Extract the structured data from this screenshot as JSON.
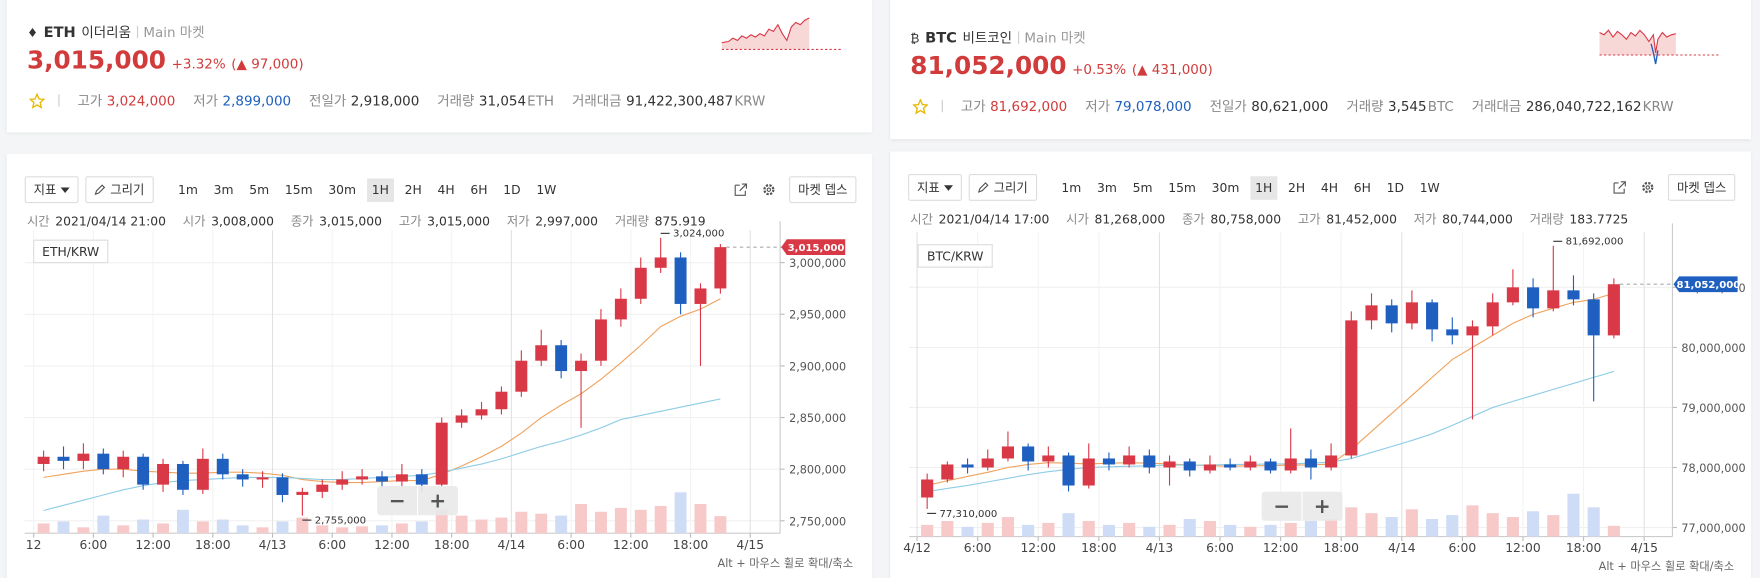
{
  "tickers": [
    {
      "icon": "♦",
      "symbol": "ETH",
      "name": "이더리움",
      "market": "Main 마켓",
      "price": "3,015,000",
      "change_pct": "+3.32%",
      "change_abs": "(▲ 97,000)",
      "color": "#d13b3b",
      "stats": [
        {
          "label": "고가",
          "value": "3,024,000",
          "color": "#d13b3b"
        },
        {
          "label": "저가",
          "value": "2,899,000",
          "color": "#1f5fbf"
        },
        {
          "label": "전일가",
          "value": "2,918,000"
        },
        {
          "label": "거래량",
          "value": "31,054",
          "unit": "ETH"
        },
        {
          "label": "거래대금",
          "value": "91,422,300,487",
          "unit": "KRW"
        }
      ]
    },
    {
      "icon": "₿",
      "symbol": "BTC",
      "name": "비트코인",
      "market": "Main 마켓",
      "price": "81,052,000",
      "change_pct": "+0.53%",
      "change_abs": "(▲ 431,000)",
      "color": "#d13b3b",
      "stats": [
        {
          "label": "고가",
          "value": "81,692,000",
          "color": "#d13b3b"
        },
        {
          "label": "저가",
          "value": "79,078,000",
          "color": "#1f5fbf"
        },
        {
          "label": "전일가",
          "value": "80,621,000"
        },
        {
          "label": "거래량",
          "value": "3,545",
          "unit": "BTC"
        },
        {
          "label": "거래대금",
          "value": "286,040,722,162",
          "unit": "KRW"
        }
      ]
    }
  ],
  "toolbar": {
    "indicator": "지표",
    "draw": "그리기",
    "intervals": [
      "1m",
      "3m",
      "5m",
      "15m",
      "30m",
      "1H",
      "2H",
      "4H",
      "6H",
      "1D",
      "1W"
    ],
    "selected_interval": 5,
    "depth": "마켓 뎁스",
    "zoom_out": "−",
    "zoom_in": "+",
    "hint": "Alt + 마우스 휠로 확대/축소"
  },
  "chart_data": [
    {
      "type": "candlestick",
      "pair": "ETH/KRW",
      "info": [
        {
          "label": "시간",
          "value": "2021/04/14 21:00"
        },
        {
          "label": "시가",
          "value": "3,008,000"
        },
        {
          "label": "종가",
          "value": "3,015,000"
        },
        {
          "label": "고가",
          "value": "3,015,000"
        },
        {
          "label": "저가",
          "value": "2,997,000"
        },
        {
          "label": "거래량",
          "value": "875.919"
        }
      ],
      "x": [
        1,
        3,
        5,
        7,
        9,
        11,
        13,
        15,
        17,
        19,
        21,
        23,
        25,
        27,
        29,
        31,
        33,
        35,
        37,
        39,
        41,
        43,
        45,
        47,
        49,
        51,
        53,
        55,
        57,
        59,
        61,
        63,
        65,
        67,
        69
      ],
      "open": [
        2805000,
        2812000,
        2808000,
        2815000,
        2800000,
        2812000,
        2785000,
        2805000,
        2780000,
        2810000,
        2795000,
        2790000,
        2792000,
        2775000,
        2778000,
        2785000,
        2790000,
        2793000,
        2788000,
        2795000,
        2785000,
        2845000,
        2852000,
        2858000,
        2875000,
        2905000,
        2920000,
        2895000,
        2905000,
        2945000,
        2965000,
        2995000,
        3005000,
        2960000,
        2975000
      ],
      "high": [
        2818000,
        2822000,
        2825000,
        2820000,
        2818000,
        2815000,
        2810000,
        2808000,
        2820000,
        2815000,
        2800000,
        2798000,
        2796000,
        2782000,
        2790000,
        2798000,
        2800000,
        2798000,
        2805000,
        2800000,
        2850000,
        2858000,
        2865000,
        2880000,
        2915000,
        2935000,
        2925000,
        2912000,
        2955000,
        2975000,
        3005000,
        3024000,
        3010000,
        2980000,
        3018000
      ],
      "low": [
        2798000,
        2800000,
        2800000,
        2795000,
        2792000,
        2780000,
        2778000,
        2775000,
        2776000,
        2790000,
        2783000,
        2782000,
        2768000,
        2755000,
        2772000,
        2780000,
        2785000,
        2782000,
        2783000,
        2778000,
        2783000,
        2840000,
        2848000,
        2853000,
        2870000,
        2900000,
        2888000,
        2840000,
        2900000,
        2938000,
        2960000,
        2990000,
        2950000,
        2900000,
        2970000
      ],
      "close": [
        2812000,
        2808000,
        2815000,
        2800000,
        2812000,
        2785000,
        2805000,
        2780000,
        2810000,
        2795000,
        2790000,
        2792000,
        2775000,
        2778000,
        2785000,
        2790000,
        2793000,
        2788000,
        2795000,
        2785000,
        2845000,
        2852000,
        2858000,
        2875000,
        2905000,
        2920000,
        2895000,
        2905000,
        2945000,
        2965000,
        2995000,
        3005000,
        2960000,
        2975000,
        3015000
      ],
      "volume": [
        500,
        600,
        300,
        900,
        400,
        700,
        500,
        1200,
        600,
        700,
        400,
        300,
        600,
        800,
        400,
        300,
        350,
        400,
        500,
        600,
        1200,
        900,
        700,
        800,
        1100,
        1000,
        900,
        1500,
        1100,
        1300,
        1200,
        1400,
        2100,
        1500,
        875
      ],
      "volume_lim": [
        0,
        3000
      ],
      "ma": [
        {
          "color": "#f0a25c",
          "values": [
            2792000,
            2795000,
            2798000,
            2800000,
            2800000,
            2798000,
            2797000,
            2796000,
            2796000,
            2797000,
            2797000,
            2796000,
            2794000,
            2790000,
            2788000,
            2787000,
            2787000,
            2788000,
            2789000,
            2789000,
            2795000,
            2803000,
            2812000,
            2822000,
            2835000,
            2850000,
            2862000,
            2873000,
            2887000,
            2903000,
            2920000,
            2938000,
            2948000,
            2955000,
            2965000
          ]
        },
        {
          "color": "#8ecde6",
          "values": [
            2760000,
            2765000,
            2770000,
            2775000,
            2780000,
            2784000,
            2787000,
            2789000,
            2790000,
            2791000,
            2792000,
            2792000,
            2792000,
            2791000,
            2790000,
            2790000,
            2791000,
            2792000,
            2793000,
            2794000,
            2797000,
            2801000,
            2805000,
            2810000,
            2816000,
            2822000,
            2827000,
            2833000,
            2840000,
            2848000,
            2852000,
            2856000,
            2860000,
            2864000,
            2868000
          ]
        }
      ],
      "up_color": "#d93846",
      "down_color": "#1f5fbf",
      "up_volume_color": "#f7c9c9",
      "down_volume_color": "#cfdcf5",
      "xlim": [
        -0.9,
        75
      ],
      "xticks": [
        {
          "value": 0,
          "label": "12"
        },
        {
          "value": 6,
          "label": "6:00"
        },
        {
          "value": 12,
          "label": "12:00"
        },
        {
          "value": 18,
          "label": "18:00"
        },
        {
          "value": 24,
          "label": "4/13"
        },
        {
          "value": 30,
          "label": "6:00"
        },
        {
          "value": 36,
          "label": "12:00"
        },
        {
          "value": 42,
          "label": "18:00"
        },
        {
          "value": 48,
          "label": "4/14"
        },
        {
          "value": 54,
          "label": "6:00"
        },
        {
          "value": 60,
          "label": "12:00"
        },
        {
          "value": 66,
          "label": "18:00"
        },
        {
          "value": 72,
          "label": "4/15"
        }
      ],
      "ylim": [
        2738000,
        3031500
      ],
      "yticks": [
        {
          "value": 2750000,
          "label": "2,750,000"
        },
        {
          "value": 2800000,
          "label": "2,800,000"
        },
        {
          "value": 2850000,
          "label": "2,850,000"
        },
        {
          "value": 2900000,
          "label": "2,900,000"
        },
        {
          "value": 2950000,
          "label": "2,950,000"
        },
        {
          "value": 3000000,
          "label": "3,000,000"
        }
      ],
      "last_price": {
        "value": 3015000,
        "label": "3,015,000",
        "color": "#d93846"
      },
      "high_marker": {
        "value": 3024000,
        "label": "3,024,000"
      },
      "low_marker": {
        "value": 2755000,
        "label": "2,755,000"
      }
    },
    {
      "type": "candlestick",
      "pair": "BTC/KRW",
      "info": [
        {
          "label": "시간",
          "value": "2021/04/14 17:00"
        },
        {
          "label": "시가",
          "value": "81,268,000"
        },
        {
          "label": "종가",
          "value": "80,758,000"
        },
        {
          "label": "고가",
          "value": "81,452,000"
        },
        {
          "label": "저가",
          "value": "80,744,000"
        },
        {
          "label": "거래량",
          "value": "183.7725"
        }
      ],
      "x": [
        1,
        3,
        5,
        7,
        9,
        11,
        13,
        15,
        17,
        19,
        21,
        23,
        25,
        27,
        29,
        31,
        33,
        35,
        37,
        39,
        41,
        43,
        45,
        47,
        49,
        51,
        53,
        55,
        57,
        59,
        61,
        63,
        65,
        67,
        69
      ],
      "open": [
        77500000,
        77800000,
        78050000,
        78000000,
        78150000,
        78350000,
        78100000,
        78200000,
        77700000,
        78150000,
        78050000,
        78200000,
        78000000,
        78100000,
        77950000,
        78050000,
        78000000,
        78100000,
        77950000,
        78150000,
        78000000,
        78200000,
        80450000,
        80700000,
        80400000,
        80750000,
        80300000,
        80200000,
        80350000,
        80750000,
        81000000,
        80650000,
        80950000,
        80800000,
        80200000
      ],
      "high": [
        77900000,
        78100000,
        78150000,
        78300000,
        78600000,
        78400000,
        78350000,
        78250000,
        78400000,
        78250000,
        78350000,
        78300000,
        78200000,
        78150000,
        78200000,
        78150000,
        78200000,
        78150000,
        78650000,
        78300000,
        78400000,
        80600000,
        80900000,
        80800000,
        80950000,
        80800000,
        80500000,
        80450000,
        80900000,
        81300000,
        81150000,
        81692000,
        81200000,
        80900000,
        81150000
      ],
      "low": [
        77310000,
        77750000,
        77900000,
        77950000,
        78100000,
        77950000,
        78000000,
        77600000,
        77650000,
        77950000,
        78000000,
        77900000,
        77700000,
        77850000,
        77900000,
        77950000,
        77950000,
        77900000,
        77900000,
        77800000,
        77950000,
        78150000,
        80300000,
        80250000,
        80300000,
        80100000,
        80050000,
        78800000,
        80200000,
        80700000,
        80500000,
        80600000,
        80700000,
        79100000,
        80150000
      ],
      "close": [
        77800000,
        78050000,
        78000000,
        78150000,
        78350000,
        78100000,
        78200000,
        77700000,
        78150000,
        78050000,
        78200000,
        78000000,
        78100000,
        77950000,
        78050000,
        78000000,
        78100000,
        77950000,
        78150000,
        78000000,
        78200000,
        80450000,
        80700000,
        80400000,
        80750000,
        80300000,
        80200000,
        80350000,
        80750000,
        81000000,
        80650000,
        80950000,
        80800000,
        80200000,
        81052000
      ],
      "volume": [
        60,
        80,
        50,
        70,
        100,
        60,
        70,
        120,
        80,
        60,
        70,
        50,
        60,
        90,
        80,
        60,
        50,
        60,
        70,
        80,
        90,
        150,
        120,
        100,
        140,
        90,
        110,
        160,
        120,
        100,
        130,
        110,
        220,
        150,
        55
      ],
      "volume_lim": [
        0,
        300
      ],
      "ma": [
        {
          "color": "#f0a25c",
          "values": [
            77700000,
            77780000,
            77850000,
            77920000,
            78000000,
            78050000,
            78080000,
            78070000,
            78060000,
            78070000,
            78080000,
            78070000,
            78060000,
            78040000,
            78030000,
            78020000,
            78030000,
            78030000,
            78040000,
            78040000,
            78060000,
            78300000,
            78600000,
            78900000,
            79200000,
            79500000,
            79800000,
            80000000,
            80200000,
            80400000,
            80550000,
            80650000,
            80750000,
            80800000,
            80900000
          ]
        },
        {
          "color": "#8ecde6",
          "values": [
            77600000,
            77650000,
            77700000,
            77760000,
            77820000,
            77880000,
            77930000,
            77970000,
            78000000,
            78010000,
            78020000,
            78030000,
            78040000,
            78040000,
            78040000,
            78050000,
            78050000,
            78060000,
            78060000,
            78070000,
            78090000,
            78150000,
            78250000,
            78350000,
            78450000,
            78560000,
            78700000,
            78850000,
            79000000,
            79100000,
            79200000,
            79300000,
            79400000,
            79500000,
            79600000
          ]
        }
      ],
      "up_color": "#d93846",
      "down_color": "#1f5fbf",
      "up_volume_color": "#f7c9c9",
      "down_volume_color": "#cfdcf5",
      "xlim": [
        -0.78,
        74.8
      ],
      "xticks": [
        {
          "value": 0,
          "label": "4/12"
        },
        {
          "value": 6,
          "label": "6:00"
        },
        {
          "value": 12,
          "label": "12:00"
        },
        {
          "value": 18,
          "label": "18:00"
        },
        {
          "value": 24,
          "label": "4/13"
        },
        {
          "value": 30,
          "label": "6:00"
        },
        {
          "value": 36,
          "label": "12:00"
        },
        {
          "value": 42,
          "label": "18:00"
        },
        {
          "value": 48,
          "label": "4/14"
        },
        {
          "value": 54,
          "label": "6:00"
        },
        {
          "value": 60,
          "label": "12:00"
        },
        {
          "value": 66,
          "label": "18:00"
        },
        {
          "value": 72,
          "label": "4/15"
        }
      ],
      "ylim": [
        76850000,
        81916000
      ],
      "yticks": [
        {
          "value": 77000000,
          "label": "77,000,000"
        },
        {
          "value": 78000000,
          "label": "78,000,000"
        },
        {
          "value": 79000000,
          "label": "79,000,000"
        },
        {
          "value": 80000000,
          "label": "80,000,000"
        },
        {
          "value": 81000000,
          "label": "81,000,000"
        }
      ],
      "last_price": {
        "value": 81052000,
        "label": "81,052,000",
        "color": "#1f5fbf"
      },
      "high_marker": {
        "value": 81692000,
        "label": "81,692,000"
      },
      "low_marker": {
        "value": 77310000,
        "label": "77,310,000"
      }
    }
  ]
}
